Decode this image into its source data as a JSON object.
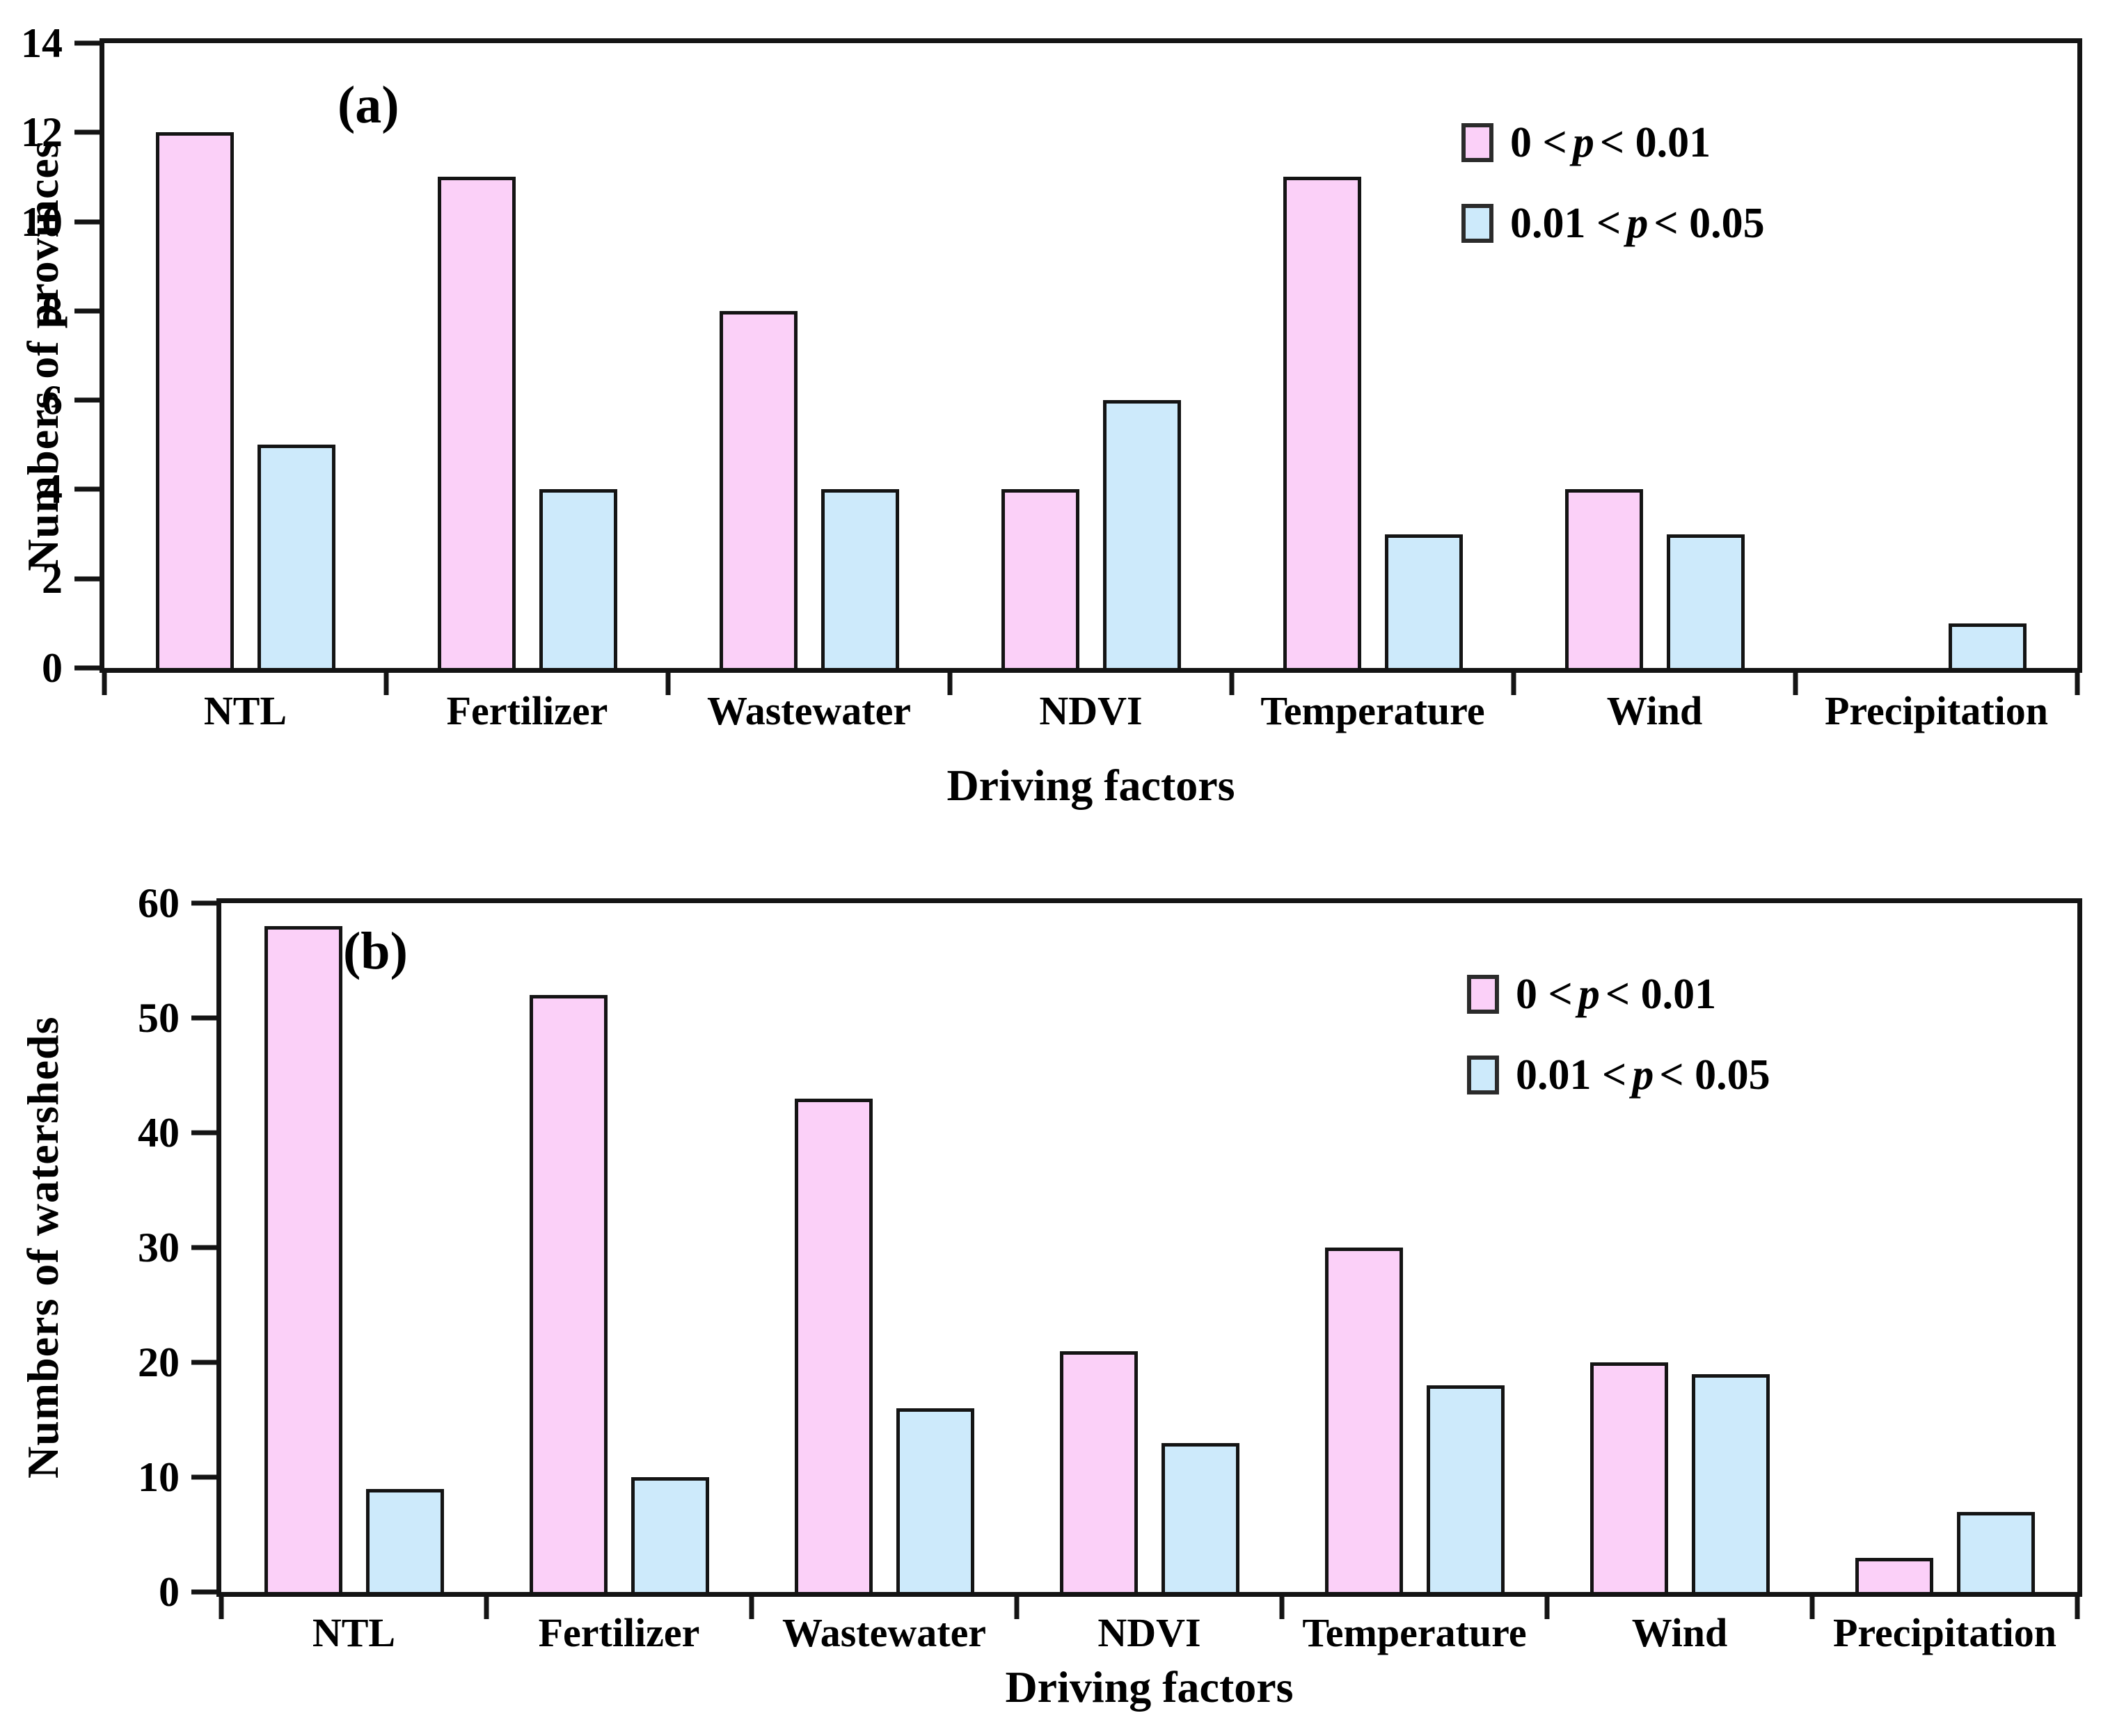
{
  "style": {
    "series_colors": [
      "#FBD0F8",
      "#CDEAFB"
    ],
    "bar_border_color": "#141414",
    "axis_color": "#141414",
    "text_color": "#000000",
    "background": "#ffffff"
  },
  "legend_items": [
    {
      "pre": "0 < ",
      "var": "p",
      "post": " < 0.01"
    },
    {
      "pre": "0.01 < ",
      "var": "p",
      "post": " < 0.05"
    }
  ],
  "chart_data": [
    {
      "type": "bar",
      "title": "(a)",
      "categories": [
        "NTL",
        "Fertilizer",
        "Wastewater",
        "NDVI",
        "Temperature",
        "Wind",
        "Precipitation"
      ],
      "series": [
        {
          "name": "0 < p < 0.01",
          "values": [
            12,
            11,
            8,
            4,
            11,
            4,
            0
          ]
        },
        {
          "name": "0.01 < p < 0.05",
          "values": [
            5,
            4,
            4,
            6,
            3,
            3,
            1
          ]
        }
      ],
      "xlabel": "Driving factors",
      "ylabel": "Numbers of provinces",
      "ylim": [
        0,
        14
      ],
      "ytick_step": 2,
      "yticks": [
        0,
        2,
        4,
        6,
        8,
        10,
        12,
        14
      ],
      "legend_position": "upper right",
      "grid": false
    },
    {
      "type": "bar",
      "title": "(b)",
      "categories": [
        "NTL",
        "Fertilizer",
        "Wastewater",
        "NDVI",
        "Temperature",
        "Wind",
        "Precipitation"
      ],
      "series": [
        {
          "name": "0 < p < 0.01",
          "values": [
            58,
            52,
            43,
            21,
            30,
            20,
            3
          ]
        },
        {
          "name": "0.01 < p < 0.05",
          "values": [
            9,
            10,
            16,
            13,
            18,
            19,
            7
          ]
        }
      ],
      "xlabel": "Driving factors",
      "ylabel": "Numbers of watersheds",
      "ylim": [
        0,
        60
      ],
      "ytick_step": 10,
      "yticks": [
        0,
        10,
        20,
        30,
        40,
        50,
        60
      ],
      "legend_position": "upper right",
      "grid": false
    }
  ]
}
